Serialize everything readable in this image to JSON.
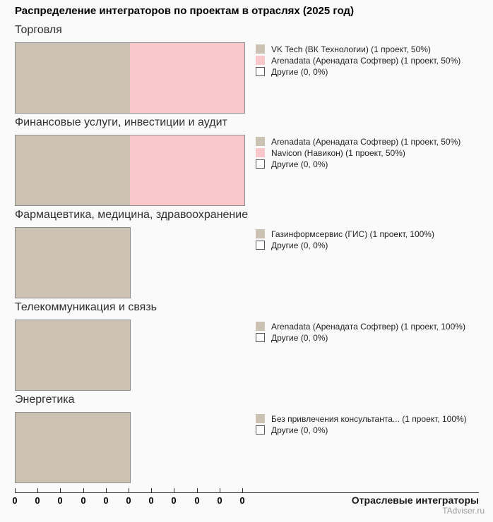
{
  "header": {
    "title": "Распределение интеграторов по проектам в отраслях (2025 год)"
  },
  "axis": {
    "label": "Отраслевые интеграторы",
    "tick_labels": [
      "0",
      "0",
      "0",
      "0",
      "0",
      "0",
      "0",
      "0",
      "0",
      "0",
      "0"
    ]
  },
  "source": {
    "label": "TAdviser.ru"
  },
  "colors": {
    "background": "#FAFAFA",
    "bar_beige": "#CBC2B3",
    "bar_pink": "#FAC7CA",
    "bar_border": "#8C8C8C",
    "others_swatch": "#FFFFFF"
  },
  "chart_data": [
    {
      "type": "bar",
      "orientation": "horizontal",
      "title": "Торговля",
      "x_unit": "projects",
      "series": [
        {
          "name": "VK Tech (ВК Технологии)",
          "projects": 1,
          "percent": 50,
          "color": "#CBC2B3",
          "legend_label": "VK Tech (ВК Технологии) (1 проект, 50%)"
        },
        {
          "name": "Arenadata (Аренадата Софтвер)",
          "projects": 1,
          "percent": 50,
          "color": "#FAC7CA",
          "legend_label": "Arenadata (Аренадата Софтвер) (1 проект, 50%)"
        },
        {
          "name": "Другие",
          "projects": 0,
          "percent": 0,
          "color": "#FFFFFF",
          "legend_label": "Другие (0, 0%)"
        }
      ]
    },
    {
      "type": "bar",
      "orientation": "horizontal",
      "title": "Финансовые услуги, инвестиции и аудит",
      "x_unit": "projects",
      "series": [
        {
          "name": "Arenadata (Аренадата Софтвер)",
          "projects": 1,
          "percent": 50,
          "color": "#CBC2B3",
          "legend_label": "Arenadata (Аренадата Софтвер) (1 проект, 50%)"
        },
        {
          "name": "Navicon (Навикон)",
          "projects": 1,
          "percent": 50,
          "color": "#FAC7CA",
          "legend_label": "Navicon (Навикон) (1 проект, 50%)"
        },
        {
          "name": "Другие",
          "projects": 0,
          "percent": 0,
          "color": "#FFFFFF",
          "legend_label": "Другие (0, 0%)"
        }
      ]
    },
    {
      "type": "bar",
      "orientation": "horizontal",
      "title": "Фармацевтика, медицина, здравоохранение",
      "x_unit": "projects",
      "series": [
        {
          "name": "Газинформсервис (ГИС)",
          "projects": 1,
          "percent": 100,
          "color": "#CBC2B3",
          "legend_label": "Газинформсервис (ГИС) (1 проект, 100%)"
        },
        {
          "name": "Другие",
          "projects": 0,
          "percent": 0,
          "color": "#FFFFFF",
          "legend_label": "Другие (0, 0%)"
        }
      ]
    },
    {
      "type": "bar",
      "orientation": "horizontal",
      "title": "Телекоммуникация и связь",
      "x_unit": "projects",
      "series": [
        {
          "name": "Arenadata (Аренадата Софтвер)",
          "projects": 1,
          "percent": 100,
          "color": "#CBC2B3",
          "legend_label": "Arenadata (Аренадата Софтвер) (1 проект, 100%)"
        },
        {
          "name": "Другие",
          "projects": 0,
          "percent": 0,
          "color": "#FFFFFF",
          "legend_label": "Другие (0, 0%)"
        }
      ]
    },
    {
      "type": "bar",
      "orientation": "horizontal",
      "title": "Энергетика",
      "x_unit": "projects",
      "series": [
        {
          "name": "Без привлечения консультанта...",
          "projects": 1,
          "percent": 100,
          "color": "#CBC2B3",
          "legend_label": "Без привлечения консультанта... (1 проект, 100%)"
        },
        {
          "name": "Другие",
          "projects": 0,
          "percent": 0,
          "color": "#FFFFFF",
          "legend_label": "Другие (0, 0%)"
        }
      ]
    }
  ]
}
